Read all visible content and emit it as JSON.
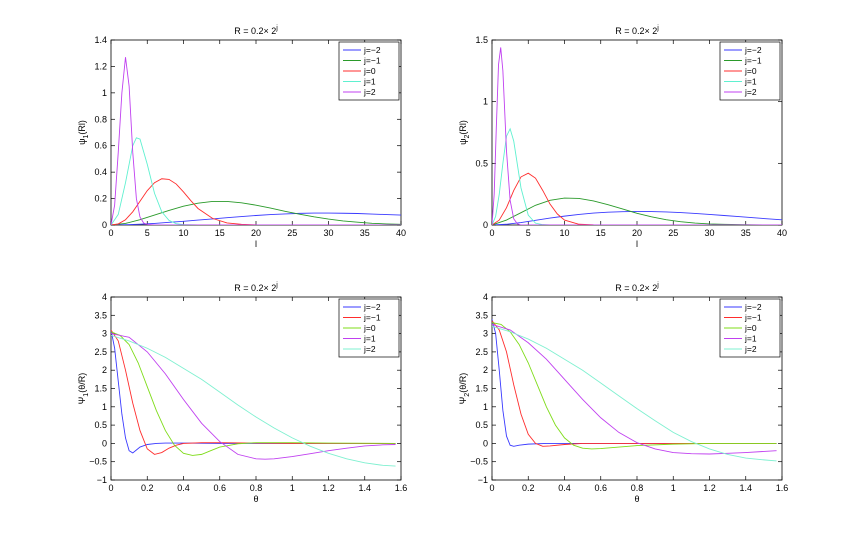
{
  "figure": {
    "colors": {
      "j_minus2": "#3a3aff",
      "j_minus1_psi_top": "#2a9a2a",
      "j_minus1_psi_bottom": "#ff2d2d",
      "j0_top": "#ff2d2d",
      "j0_bottom": "#7fdc1a",
      "j1_top": "#5ff0d0",
      "j1_bottom": "#c040f0",
      "j2_top": "#c040f0",
      "j2_bottom": "#7ff0d0"
    }
  },
  "chart_data": [
    {
      "id": "p1",
      "type": "line",
      "title": "R = 0.2× 2",
      "title_sup": "j",
      "ylabel_main": "ψ",
      "ylabel_sub": "1",
      "ylabel_rest": "(Rl)",
      "xlabel": "l",
      "xlim": [
        0,
        40
      ],
      "ylim": [
        0,
        1.4
      ],
      "xticks": [
        "0",
        "5",
        "10",
        "15",
        "20",
        "25",
        "30",
        "35",
        "40"
      ],
      "xtick_values": [
        0,
        5,
        10,
        15,
        20,
        25,
        30,
        35,
        40
      ],
      "yticks": [
        "0",
        "0.2",
        "0.4",
        "0.6",
        "0.8",
        "1",
        "1.2",
        "1.4"
      ],
      "ytick_values": [
        0,
        0.2,
        0.4,
        0.6,
        0.8,
        1,
        1.2,
        1.4
      ],
      "legend": [
        "j=−2",
        "j=−1",
        "j=0",
        "j=1",
        "j=2"
      ],
      "series": [
        {
          "name": "j=−2",
          "color": "#3a3aff",
          "x": [
            0,
            2,
            4,
            6,
            8,
            10,
            12,
            14,
            16,
            18,
            20,
            22,
            24,
            26,
            28,
            30,
            32,
            34,
            36,
            38,
            40
          ],
          "y": [
            0,
            0.002,
            0.006,
            0.012,
            0.02,
            0.028,
            0.037,
            0.046,
            0.055,
            0.064,
            0.072,
            0.079,
            0.084,
            0.088,
            0.09,
            0.09,
            0.089,
            0.087,
            0.083,
            0.079,
            0.075
          ]
        },
        {
          "name": "j=−1",
          "color": "#2a9a2a",
          "x": [
            0,
            2,
            4,
            6,
            8,
            10,
            12,
            14,
            16,
            18,
            20,
            22,
            24,
            26,
            28,
            30,
            32,
            34,
            36,
            38,
            40
          ],
          "y": [
            0,
            0.012,
            0.04,
            0.075,
            0.11,
            0.142,
            0.165,
            0.178,
            0.178,
            0.168,
            0.15,
            0.128,
            0.104,
            0.082,
            0.062,
            0.045,
            0.031,
            0.021,
            0.013,
            0.008,
            0.005
          ]
        },
        {
          "name": "j=0",
          "color": "#ff2d2d",
          "x": [
            0,
            1,
            2,
            3,
            4,
            5,
            6,
            7,
            8,
            9,
            10,
            11,
            12,
            14,
            16,
            18,
            20,
            24,
            28,
            40
          ],
          "y": [
            0,
            0.008,
            0.04,
            0.1,
            0.18,
            0.26,
            0.32,
            0.35,
            0.345,
            0.31,
            0.25,
            0.185,
            0.125,
            0.05,
            0.016,
            0.005,
            0.001,
            0,
            0,
            0
          ]
        },
        {
          "name": "j=1",
          "color": "#5ff0d0",
          "x": [
            0,
            1,
            2,
            3,
            3.5,
            4,
            5,
            6,
            7,
            8,
            9,
            10,
            12,
            40
          ],
          "y": [
            0,
            0.08,
            0.32,
            0.6,
            0.66,
            0.65,
            0.46,
            0.24,
            0.1,
            0.035,
            0.01,
            0.003,
            0,
            0
          ]
        },
        {
          "name": "j=2",
          "color": "#c040f0",
          "x": [
            0,
            0.5,
            1,
            1.5,
            2,
            2.5,
            3,
            3.5,
            4,
            4.5,
            5,
            6,
            40
          ],
          "y": [
            0,
            0.15,
            0.55,
            1.0,
            1.27,
            1.05,
            0.55,
            0.2,
            0.06,
            0.015,
            0.004,
            0,
            0
          ]
        }
      ]
    },
    {
      "id": "p2",
      "type": "line",
      "title": "R = 0.2× 2",
      "title_sup": "j",
      "ylabel_main": "ψ",
      "ylabel_sub": "2",
      "ylabel_rest": "(Rl)",
      "xlabel": "l",
      "xlim": [
        0,
        40
      ],
      "ylim": [
        0,
        1.5
      ],
      "xticks": [
        "0",
        "5",
        "10",
        "15",
        "20",
        "25",
        "30",
        "35",
        "40"
      ],
      "xtick_values": [
        0,
        5,
        10,
        15,
        20,
        25,
        30,
        35,
        40
      ],
      "yticks": [
        "0",
        "0.5",
        "1",
        "1.5"
      ],
      "ytick_values": [
        0,
        0.5,
        1,
        1.5
      ],
      "legend": [
        "j=−2",
        "j=−1",
        "j=0",
        "j=1",
        "j=2"
      ],
      "series": [
        {
          "name": "j=−2",
          "color": "#3a3aff",
          "x": [
            0,
            2,
            4,
            6,
            8,
            10,
            12,
            14,
            16,
            18,
            20,
            22,
            24,
            26,
            28,
            30,
            32,
            34,
            36,
            38,
            40
          ],
          "y": [
            0,
            0.006,
            0.02,
            0.038,
            0.056,
            0.072,
            0.086,
            0.097,
            0.104,
            0.108,
            0.11,
            0.109,
            0.106,
            0.101,
            0.094,
            0.086,
            0.077,
            0.068,
            0.059,
            0.05,
            0.042
          ]
        },
        {
          "name": "j=−1",
          "color": "#2a9a2a",
          "x": [
            0,
            2,
            4,
            6,
            8,
            10,
            12,
            14,
            16,
            18,
            20,
            22,
            24,
            26,
            28,
            30,
            32,
            36,
            40
          ],
          "y": [
            0,
            0.04,
            0.1,
            0.16,
            0.2,
            0.218,
            0.215,
            0.195,
            0.165,
            0.13,
            0.095,
            0.066,
            0.043,
            0.027,
            0.016,
            0.009,
            0.005,
            0.001,
            0
          ]
        },
        {
          "name": "j=0",
          "color": "#ff2d2d",
          "x": [
            0,
            1,
            2,
            3,
            4,
            5,
            6,
            7,
            8,
            9,
            10,
            12,
            14,
            16,
            40
          ],
          "y": [
            0,
            0.04,
            0.14,
            0.28,
            0.39,
            0.42,
            0.38,
            0.28,
            0.17,
            0.09,
            0.04,
            0.006,
            0.001,
            0,
            0
          ]
        },
        {
          "name": "j=1",
          "color": "#5ff0d0",
          "x": [
            0,
            0.5,
            1,
            1.5,
            2,
            2.5,
            3,
            4,
            5,
            6,
            7,
            8,
            40
          ],
          "y": [
            0,
            0.07,
            0.25,
            0.5,
            0.72,
            0.78,
            0.68,
            0.3,
            0.08,
            0.015,
            0.003,
            0,
            0
          ]
        },
        {
          "name": "j=2",
          "color": "#c040f0",
          "x": [
            0,
            0.3,
            0.6,
            0.9,
            1.2,
            1.5,
            2,
            2.5,
            3,
            3.5,
            4,
            40
          ],
          "y": [
            0,
            0.25,
            0.8,
            1.3,
            1.44,
            1.25,
            0.6,
            0.2,
            0.05,
            0.01,
            0,
            0
          ]
        }
      ]
    },
    {
      "id": "p3",
      "type": "line",
      "title": "R = 0.2× 2",
      "title_sup": "j",
      "ylabel_main": "Ψ",
      "ylabel_sub": "1",
      "ylabel_rest": "(θ/R)",
      "xlabel": "θ",
      "xlim": [
        0,
        1.6
      ],
      "ylim": [
        -1,
        4
      ],
      "xticks": [
        "0",
        "0.2",
        "0.4",
        "0.6",
        "0.8",
        "1",
        "1.2",
        "1.4",
        "1.6"
      ],
      "xtick_values": [
        0,
        0.2,
        0.4,
        0.6,
        0.8,
        1,
        1.2,
        1.4,
        1.6
      ],
      "yticks": [
        "−1",
        "−0.5",
        "0",
        "0.5",
        "1",
        "1.5",
        "2",
        "2.5",
        "3",
        "3.5",
        "4"
      ],
      "ytick_values": [
        -1,
        -0.5,
        0,
        0.5,
        1,
        1.5,
        2,
        2.5,
        3,
        3.5,
        4
      ],
      "legend": [
        "j=−2",
        "j=−1",
        "j=0",
        "j=1",
        "j=2"
      ],
      "series": [
        {
          "name": "j=−2",
          "color": "#3a3aff",
          "x": [
            0,
            0.02,
            0.04,
            0.06,
            0.08,
            0.1,
            0.12,
            0.14,
            0.16,
            0.2,
            0.25,
            0.3,
            0.4,
            0.6,
            1.0,
            1.57
          ],
          "y": [
            3.1,
            2.6,
            1.7,
            0.8,
            0.15,
            -0.2,
            -0.26,
            -0.18,
            -0.1,
            -0.03,
            0,
            0.01,
            0.01,
            0,
            0,
            0
          ]
        },
        {
          "name": "j=−1",
          "color": "#ff2d2d",
          "x": [
            0,
            0.04,
            0.08,
            0.12,
            0.16,
            0.2,
            0.24,
            0.28,
            0.32,
            0.36,
            0.4,
            0.5,
            0.6,
            0.8,
            1.0,
            1.2,
            1.57
          ],
          "y": [
            3.1,
            2.8,
            2.0,
            1.1,
            0.35,
            -0.15,
            -0.3,
            -0.25,
            -0.13,
            -0.05,
            0,
            0.02,
            0.02,
            0.01,
            0,
            0,
            0
          ]
        },
        {
          "name": "j=0",
          "color": "#7fdc1a",
          "x": [
            0,
            0.05,
            0.1,
            0.15,
            0.2,
            0.25,
            0.3,
            0.35,
            0.4,
            0.45,
            0.5,
            0.55,
            0.6,
            0.7,
            0.8,
            1.0,
            1.2,
            1.57
          ],
          "y": [
            3.05,
            2.95,
            2.7,
            2.2,
            1.55,
            0.9,
            0.35,
            -0.05,
            -0.27,
            -0.33,
            -0.3,
            -0.2,
            -0.1,
            -0.01,
            0.02,
            0.02,
            0.01,
            0
          ]
        },
        {
          "name": "j=1",
          "color": "#c040f0",
          "x": [
            0,
            0.1,
            0.2,
            0.3,
            0.4,
            0.5,
            0.6,
            0.7,
            0.8,
            0.85,
            0.9,
            1.0,
            1.1,
            1.2,
            1.3,
            1.4,
            1.5,
            1.57
          ],
          "y": [
            3.0,
            2.9,
            2.5,
            1.9,
            1.2,
            0.55,
            0.05,
            -0.3,
            -0.42,
            -0.43,
            -0.42,
            -0.36,
            -0.28,
            -0.2,
            -0.13,
            -0.07,
            -0.04,
            -0.03
          ]
        },
        {
          "name": "j=2",
          "color": "#7ff0d0",
          "x": [
            0,
            0.1,
            0.2,
            0.3,
            0.4,
            0.5,
            0.6,
            0.7,
            0.8,
            0.9,
            1.0,
            1.1,
            1.2,
            1.3,
            1.4,
            1.5,
            1.57
          ],
          "y": [
            2.95,
            2.8,
            2.6,
            2.35,
            2.05,
            1.75,
            1.4,
            1.05,
            0.72,
            0.42,
            0.15,
            -0.08,
            -0.27,
            -0.42,
            -0.53,
            -0.6,
            -0.62
          ]
        }
      ]
    },
    {
      "id": "p4",
      "type": "line",
      "title": "R = 0.2× 2",
      "title_sup": "j",
      "ylabel_main": "Ψ",
      "ylabel_sub": "2",
      "ylabel_rest": "(θ/R)",
      "xlabel": "θ",
      "xlim": [
        0,
        1.6
      ],
      "ylim": [
        -1,
        4
      ],
      "xticks": [
        "0",
        "0.2",
        "0.4",
        "0.6",
        "0.8",
        "1",
        "1.2",
        "1.4",
        "1.6"
      ],
      "xtick_values": [
        0,
        0.2,
        0.4,
        0.6,
        0.8,
        1,
        1.2,
        1.4,
        1.6
      ],
      "yticks": [
        "−1",
        "−0.5",
        "0",
        "0.5",
        "1",
        "1.5",
        "2",
        "2.5",
        "3",
        "3.5",
        "4"
      ],
      "ytick_values": [
        -1,
        -0.5,
        0,
        0.5,
        1,
        1.5,
        2,
        2.5,
        3,
        3.5,
        4
      ],
      "legend": [
        "j=−2",
        "j=−1",
        "j=0",
        "j=1",
        "j=2"
      ],
      "series": [
        {
          "name": "j=−2",
          "color": "#3a3aff",
          "x": [
            0,
            0.02,
            0.04,
            0.06,
            0.08,
            0.1,
            0.12,
            0.15,
            0.2,
            0.3,
            0.5,
            1.0,
            1.57
          ],
          "y": [
            3.4,
            3.0,
            2.0,
            0.9,
            0.2,
            -0.05,
            -0.08,
            -0.05,
            -0.02,
            0,
            0,
            0,
            0
          ]
        },
        {
          "name": "j=−1",
          "color": "#ff2d2d",
          "x": [
            0,
            0.04,
            0.08,
            0.12,
            0.16,
            0.2,
            0.24,
            0.28,
            0.32,
            0.4,
            0.5,
            0.8,
            1.2,
            1.57
          ],
          "y": [
            3.35,
            3.1,
            2.5,
            1.6,
            0.8,
            0.25,
            0,
            -0.08,
            -0.07,
            -0.03,
            0,
            0,
            0,
            0
          ]
        },
        {
          "name": "j=0",
          "color": "#7fdc1a",
          "x": [
            0,
            0.05,
            0.1,
            0.15,
            0.2,
            0.25,
            0.3,
            0.35,
            0.4,
            0.45,
            0.5,
            0.55,
            0.6,
            0.7,
            0.8,
            1.0,
            1.2,
            1.57
          ],
          "y": [
            3.3,
            3.25,
            3.05,
            2.7,
            2.2,
            1.6,
            1.0,
            0.5,
            0.15,
            -0.05,
            -0.13,
            -0.15,
            -0.14,
            -0.1,
            -0.06,
            -0.02,
            0,
            0
          ]
        },
        {
          "name": "j=1",
          "color": "#c040f0",
          "x": [
            0,
            0.1,
            0.2,
            0.3,
            0.4,
            0.5,
            0.6,
            0.7,
            0.8,
            0.9,
            1.0,
            1.1,
            1.2,
            1.3,
            1.4,
            1.5,
            1.57
          ],
          "y": [
            3.25,
            3.1,
            2.75,
            2.3,
            1.75,
            1.2,
            0.7,
            0.3,
            0.02,
            -0.15,
            -0.25,
            -0.28,
            -0.29,
            -0.27,
            -0.25,
            -0.22,
            -0.2
          ]
        },
        {
          "name": "j=2",
          "color": "#7ff0d0",
          "x": [
            0,
            0.1,
            0.2,
            0.3,
            0.4,
            0.5,
            0.6,
            0.7,
            0.8,
            0.9,
            1.0,
            1.1,
            1.2,
            1.3,
            1.4,
            1.5,
            1.57
          ],
          "y": [
            3.2,
            3.05,
            2.85,
            2.6,
            2.3,
            2.0,
            1.65,
            1.3,
            0.95,
            0.62,
            0.3,
            0.05,
            -0.15,
            -0.3,
            -0.4,
            -0.45,
            -0.48
          ]
        }
      ]
    }
  ]
}
